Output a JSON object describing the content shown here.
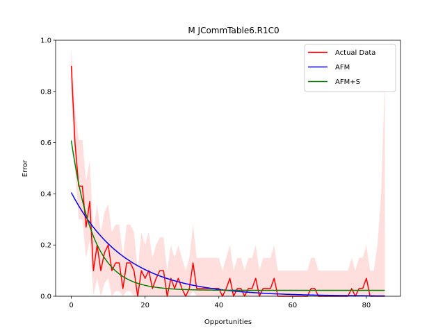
{
  "chart_data": {
    "type": "line",
    "title": "M  JCommTable6.R1C0",
    "xlabel": "Opportunities",
    "ylabel": "Error",
    "xlim": [
      -4.25,
      89.25
    ],
    "ylim": [
      0,
      1.0
    ],
    "x_ticks": [
      0,
      20,
      40,
      60,
      80
    ],
    "y_ticks": [
      0.0,
      0.2,
      0.4,
      0.6,
      0.8,
      1.0
    ],
    "x_tick_labels": [
      "0",
      "20",
      "40",
      "60",
      "80"
    ],
    "y_tick_labels": [
      "0.0",
      "0.2",
      "0.4",
      "0.6",
      "0.8",
      "1.0"
    ],
    "grid": false,
    "legend_position": "top-right",
    "series": [
      {
        "name": "Actual Data",
        "color": "#ff0000",
        "x": [
          0,
          1,
          2,
          3,
          4,
          5,
          6,
          7,
          8,
          9,
          10,
          11,
          12,
          13,
          14,
          15,
          16,
          17,
          18,
          19,
          20,
          21,
          22,
          23,
          24,
          25,
          26,
          27,
          28,
          29,
          30,
          31,
          32,
          33,
          34,
          35,
          36,
          37,
          38,
          39,
          40,
          41,
          42,
          43,
          44,
          45,
          46,
          47,
          48,
          49,
          50,
          51,
          52,
          53,
          54,
          55,
          56,
          57,
          58,
          59,
          60,
          61,
          62,
          63,
          64,
          65,
          66,
          67,
          68,
          69,
          70,
          71,
          72,
          73,
          74,
          75,
          76,
          77,
          78,
          79,
          80,
          81,
          82,
          83,
          84,
          85
        ],
        "values": [
          0.9,
          0.6,
          0.43,
          0.43,
          0.27,
          0.37,
          0.1,
          0.2,
          0.1,
          0.17,
          0.2,
          0.1,
          0.13,
          0.13,
          0.03,
          0.13,
          0.13,
          0.1,
          0.0,
          0.1,
          0.07,
          0.1,
          0.03,
          0.07,
          0.1,
          0.1,
          0.0,
          0.07,
          0.03,
          0.07,
          0.03,
          0.0,
          0.03,
          0.13,
          0.03,
          0.03,
          0.03,
          0.03,
          0.03,
          0.03,
          0.03,
          0.0,
          0.03,
          0.07,
          0.0,
          0.03,
          0.03,
          0.0,
          0.03,
          0.03,
          0.07,
          0.0,
          0.03,
          0.03,
          0.03,
          0.07,
          0.0,
          0.0,
          0.0,
          0.0,
          0.0,
          0.0,
          0.0,
          0.0,
          0.0,
          0.03,
          0.03,
          0.0,
          0.0,
          0.0,
          0.0,
          0.0,
          0.0,
          0.0,
          0.0,
          0.0,
          0.03,
          0.0,
          0.03,
          0.03,
          0.07,
          0.0,
          0.0,
          0.0,
          0.0,
          0.0
        ],
        "ci_lower": [
          0.8,
          0.5,
          0.3,
          0.3,
          0.15,
          0.22,
          0.0,
          0.07,
          0.0,
          0.05,
          0.07,
          0.0,
          0.02,
          0.02,
          0.0,
          0.02,
          0.02,
          0.0,
          0.0,
          0.0,
          0.0,
          0.0,
          0.0,
          0.0,
          0.0,
          0.0,
          0.0,
          0.0,
          0.0,
          0.0,
          0.0,
          0.0,
          0.0,
          0.02,
          0.0,
          0.0,
          0.0,
          0.0,
          0.0,
          0.0,
          0.0,
          0.0,
          0.0,
          0.0,
          0.0,
          0.0,
          0.0,
          0.0,
          0.0,
          0.0,
          0.0,
          0.0,
          0.0,
          0.0,
          0.0,
          0.0,
          0.0,
          0.0,
          0.0,
          0.0,
          0.0,
          0.0,
          0.0,
          0.0,
          0.0,
          0.0,
          0.0,
          0.0,
          0.0,
          0.0,
          0.0,
          0.0,
          0.0,
          0.0,
          0.0,
          0.0,
          0.0,
          0.0,
          0.0,
          0.0,
          0.0,
          0.0,
          0.0,
          0.0,
          0.0,
          0.0
        ],
        "ci_upper": [
          0.97,
          0.73,
          0.61,
          0.61,
          0.45,
          0.53,
          0.25,
          0.36,
          0.25,
          0.33,
          0.36,
          0.25,
          0.28,
          0.28,
          0.15,
          0.28,
          0.28,
          0.25,
          0.1,
          0.25,
          0.2,
          0.25,
          0.15,
          0.2,
          0.23,
          0.23,
          0.1,
          0.2,
          0.15,
          0.2,
          0.15,
          0.1,
          0.15,
          0.28,
          0.15,
          0.15,
          0.15,
          0.15,
          0.15,
          0.15,
          0.15,
          0.1,
          0.15,
          0.2,
          0.1,
          0.15,
          0.15,
          0.1,
          0.15,
          0.15,
          0.2,
          0.1,
          0.15,
          0.15,
          0.15,
          0.2,
          0.1,
          0.1,
          0.1,
          0.1,
          0.1,
          0.1,
          0.1,
          0.1,
          0.1,
          0.15,
          0.15,
          0.1,
          0.1,
          0.1,
          0.1,
          0.1,
          0.1,
          0.1,
          0.1,
          0.1,
          0.15,
          0.1,
          0.15,
          0.15,
          0.2,
          0.1,
          0.1,
          0.2,
          0.4,
          0.85
        ]
      },
      {
        "name": "AFM",
        "color": "#0000ff",
        "curve": {
          "form": "exponential",
          "a": 0.405,
          "b": -0.068,
          "c": 0.0
        },
        "x_range": [
          0,
          85
        ]
      },
      {
        "name": "AFM+S",
        "color": "#008000",
        "curve": {
          "form": "exponential",
          "a": 0.585,
          "b": -0.17,
          "c": 0.023
        },
        "x_range": [
          0,
          85
        ]
      }
    ]
  }
}
